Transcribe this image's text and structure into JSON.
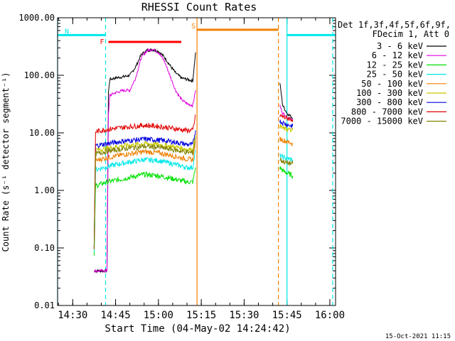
{
  "chart_data": {
    "type": "line",
    "title": "RHESSI Count Rates",
    "xlabel": "Start Time (04-May-02 14:24:42)",
    "ylabel": "Count Rate (s⁻¹ detector segment⁻¹)",
    "footer_date": "15-Oct-2021 11:15",
    "log_y": true,
    "xlim": [
      "14:24:42",
      "16:02:00"
    ],
    "ylim": [
      0.01,
      1000
    ],
    "x_ticks": [
      "14:30",
      "14:45",
      "15:00",
      "15:15",
      "15:30",
      "15:45",
      "16:00"
    ],
    "y_ticks": [
      "0.01",
      "0.10",
      "1.00",
      "10.00",
      "100.00",
      "1000.00"
    ],
    "legend_header": [
      "Det 1f,3f,4f,5f,6f,9f,",
      "FDecim 1, Att 0"
    ],
    "legend_placement": "right",
    "series": [
      {
        "name": "3 - 6 keV",
        "color": "#000000",
        "x": [
          "14:37:30",
          "14:42:00",
          "14:42:30",
          "14:43:00",
          "14:45:00",
          "14:48:00",
          "14:50:00",
          "14:52:00",
          "14:54:00",
          "14:56:00",
          "14:58:00",
          "15:00:00",
          "15:02:00",
          "15:04:00",
          "15:06:00",
          "15:08:00",
          "15:10:00",
          "15:12:00",
          "15:13:00"
        ],
        "y": [
          0.04,
          0.04,
          50,
          85,
          90,
          95,
          100,
          140,
          230,
          270,
          280,
          260,
          210,
          150,
          110,
          90,
          85,
          80,
          250
        ]
      },
      {
        "name": "6 - 12 keV",
        "color": "#e000e0",
        "x": [
          "14:37:30",
          "14:42:00",
          "14:42:30",
          "14:43:00",
          "14:45:00",
          "14:48:00",
          "14:50:00",
          "14:52:00",
          "14:54:00",
          "14:56:00",
          "14:58:00",
          "15:00:00",
          "15:02:00",
          "15:04:00",
          "15:06:00",
          "15:08:00",
          "15:10:00",
          "15:12:00",
          "15:13:00"
        ],
        "y": [
          0.04,
          0.04,
          20,
          45,
          50,
          55,
          55,
          90,
          200,
          270,
          285,
          250,
          180,
          100,
          55,
          38,
          32,
          30,
          55
        ]
      },
      {
        "name": "12 - 25 keV",
        "color": "#00e000",
        "x": [
          "14:37:30",
          "14:38:00",
          "14:42:00",
          "14:48:00",
          "14:55:00",
          "15:00:00",
          "15:05:00",
          "15:10:00",
          "15:12:00",
          "15:13:00"
        ],
        "y": [
          0.07,
          1.2,
          1.4,
          1.6,
          1.9,
          1.8,
          1.6,
          1.4,
          1.4,
          2.5
        ]
      },
      {
        "name": "25 - 50 keV",
        "color": "#00e8e8",
        "x": [
          "14:37:30",
          "14:38:00",
          "14:42:00",
          "14:48:00",
          "14:55:00",
          "15:00:00",
          "15:05:00",
          "15:10:00",
          "15:12:00",
          "15:13:00"
        ],
        "y": [
          0.08,
          2.3,
          2.6,
          3.0,
          3.4,
          3.3,
          2.9,
          2.5,
          2.5,
          5.0
        ]
      },
      {
        "name": "50 - 100 keV",
        "color": "#f08000",
        "x": [
          "14:37:30",
          "14:38:00",
          "14:42:00",
          "14:48:00",
          "14:55:00",
          "15:00:00",
          "15:05:00",
          "15:10:00",
          "15:12:00",
          "15:13:00"
        ],
        "y": [
          0.09,
          3.3,
          3.7,
          4.2,
          4.7,
          4.5,
          4.0,
          3.5,
          3.4,
          7.0
        ]
      },
      {
        "name": "100 - 300 keV",
        "color": "#c8c800",
        "x": [
          "14:37:30",
          "14:38:00",
          "14:42:00",
          "14:48:00",
          "14:55:00",
          "15:00:00",
          "15:05:00",
          "15:10:00",
          "15:12:00",
          "15:13:00"
        ],
        "y": [
          0.1,
          5.0,
          5.4,
          6.0,
          6.5,
          6.3,
          5.8,
          5.2,
          5.1,
          9.0
        ]
      },
      {
        "name": "300 - 800 keV",
        "color": "#0000e0",
        "x": [
          "14:37:30",
          "14:38:00",
          "14:42:00",
          "14:48:00",
          "14:55:00",
          "15:00:00",
          "15:05:00",
          "15:10:00",
          "15:12:00",
          "15:13:00"
        ],
        "y": [
          0.1,
          6.0,
          6.5,
          7.2,
          7.8,
          7.5,
          7.0,
          6.3,
          6.2,
          11.0
        ]
      },
      {
        "name": "800 - 7000 keV",
        "color": "#e00000",
        "x": [
          "14:37:30",
          "14:38:00",
          "14:42:00",
          "14:48:00",
          "14:55:00",
          "15:00:00",
          "15:05:00",
          "15:10:00",
          "15:12:00",
          "15:13:00"
        ],
        "y": [
          0.1,
          10.5,
          11.5,
          12.5,
          13.5,
          13.0,
          12.0,
          11.0,
          11.0,
          20.0
        ]
      },
      {
        "name": "7000 - 15000 keV",
        "color": "#808000",
        "x": [
          "14:37:30",
          "14:38:00",
          "14:42:00",
          "14:48:00",
          "14:55:00",
          "15:00:00",
          "15:05:00",
          "15:10:00",
          "15:12:00",
          "15:13:00"
        ],
        "y": [
          0.09,
          4.3,
          4.8,
          5.3,
          5.8,
          5.6,
          5.1,
          4.6,
          4.5,
          8.0
        ]
      }
    ],
    "post_segment": {
      "x": [
        "15:42:30",
        "15:43:30",
        "15:45:00",
        "15:47:00"
      ],
      "series_y": {
        "3 - 6 keV": [
          75,
          30,
          22,
          18
        ],
        "6 - 12 keV": [
          30,
          22,
          19,
          17
        ],
        "12 - 25 keV": [
          2.5,
          2.2,
          2.0,
          1.8
        ],
        "25 - 50 keV": [
          4.0,
          3.8,
          3.6,
          3.4
        ],
        "50 - 100 keV": [
          8.0,
          7.5,
          7.0,
          6.5
        ],
        "100 - 300 keV": [
          13.0,
          12.0,
          11.5,
          11.0
        ],
        "300 - 800 keV": [
          16.0,
          15.0,
          14.0,
          13.0
        ],
        "800 - 7000 keV": [
          20.0,
          19.0,
          18.0,
          17.0
        ],
        "7000 - 15000 keV": [
          3.5,
          3.2,
          3.0,
          2.9
        ]
      }
    },
    "intervals": [
      {
        "label": "N",
        "color": "#00e8e8",
        "value": 500,
        "segments": [
          [
            "14:24:42",
            "14:41:30"
          ],
          [
            "15:45:00",
            "16:02:00"
          ]
        ]
      },
      {
        "label": "F",
        "color": "#ff0000",
        "value": 380,
        "segments": [
          [
            "14:42:30",
            "15:08:00"
          ]
        ]
      },
      {
        "label": "S",
        "color": "#f08000",
        "value": 620,
        "segments": [
          [
            "15:13:30",
            "15:42:00"
          ]
        ]
      }
    ],
    "vertical_lines": [
      {
        "x": "14:24:42",
        "color": "#00e8e8",
        "style": "solid"
      },
      {
        "x": "14:41:30",
        "color": "#00e8e8",
        "style": "dashed"
      },
      {
        "x": "15:13:30",
        "color": "#f08000",
        "style": "solid"
      },
      {
        "x": "15:42:00",
        "color": "#f08000",
        "style": "dashed"
      },
      {
        "x": "15:45:00",
        "color": "#00e8e8",
        "style": "solid"
      },
      {
        "x": "16:01:00",
        "color": "#00e8e8",
        "style": "dashed"
      }
    ]
  }
}
